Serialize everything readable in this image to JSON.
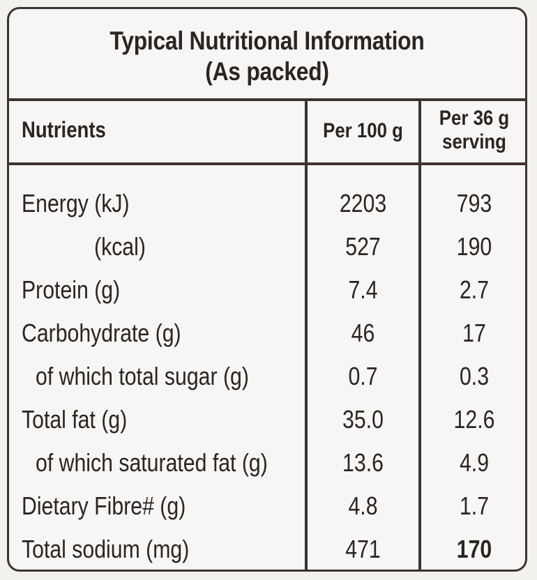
{
  "title": {
    "line1": "Typical Nutritional Information",
    "line2": "(As packed)"
  },
  "headers": {
    "nutrients": "Nutrients",
    "per_100g": "Per 100 g",
    "per_serving_line1": "Per 36 g",
    "per_serving_line2": "serving"
  },
  "rows": [
    {
      "name": "Energy (kJ)",
      "per_100g": "2203",
      "per_serving": "793"
    },
    {
      "name": "(kcal)",
      "per_100g": "527",
      "per_serving": "190"
    },
    {
      "name": "Protein (g)",
      "per_100g": "7.4",
      "per_serving": "2.7"
    },
    {
      "name": "Carbohydrate (g)",
      "per_100g": "46",
      "per_serving": "17"
    },
    {
      "name": "of which total sugar (g)",
      "per_100g": "0.7",
      "per_serving": "0.3"
    },
    {
      "name": "Total fat (g)",
      "per_100g": "35.0",
      "per_serving": "12.6"
    },
    {
      "name": "of which saturated fat (g)",
      "per_100g": "13.6",
      "per_serving": "4.9"
    },
    {
      "name": "Dietary Fibre# (g)",
      "per_100g": "4.8",
      "per_serving": "1.7"
    },
    {
      "name": "Total sodium (mg)",
      "per_100g": "471",
      "per_serving": "170"
    }
  ],
  "colors": {
    "ink": "#2a2522",
    "border": "#3a3431",
    "paper": "#f7f6f4"
  }
}
